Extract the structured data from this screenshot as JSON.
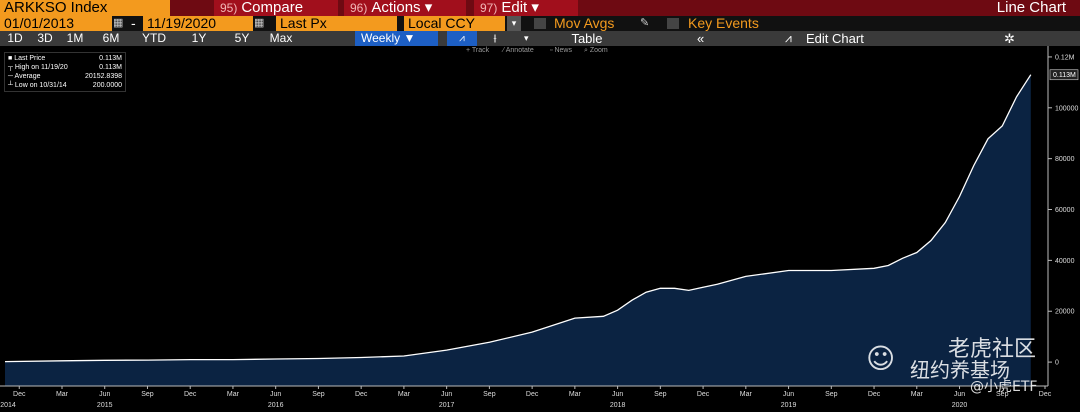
{
  "toolbar": {
    "security": "ARKKSO Index",
    "menu": [
      {
        "key": "95)",
        "label": "Compare"
      },
      {
        "key": "96)",
        "label": "Actions"
      },
      {
        "key": "97)",
        "label": "Edit"
      }
    ],
    "view": "Line Chart"
  },
  "range": {
    "start": "01/01/2013",
    "separator": "-",
    "end": "11/19/2020",
    "field": "Last Px",
    "currency": "Local CCY",
    "options": [
      "Mov Avgs",
      "Key Events"
    ]
  },
  "periods": [
    "1D",
    "3D",
    "1M",
    "6M",
    "YTD",
    "1Y",
    "5Y",
    "Max"
  ],
  "frequency": "Weekly",
  "buttons": [
    "Table",
    "Edit Chart"
  ],
  "tools": [
    "Track",
    "Annotate",
    "News",
    "Zoom"
  ],
  "legend": [
    {
      "label": "Last Price",
      "value": "0.113M"
    },
    {
      "label": "High on 11/19/20",
      "value": "0.113M"
    },
    {
      "label": "Average",
      "value": "20152.8398"
    },
    {
      "label": "Low on 10/31/14",
      "value": "200.0000"
    }
  ],
  "watermark": [
    "老虎社区",
    "纽约养基场",
    "@小虎ETF"
  ],
  "chart_data": {
    "type": "area",
    "x": [
      "2014-11",
      "2015-03",
      "2015-06",
      "2015-09",
      "2015-12",
      "2016-03",
      "2016-06",
      "2016-09",
      "2016-12",
      "2017-03",
      "2017-06",
      "2017-09",
      "2017-12",
      "2018-03",
      "2018-05",
      "2018-06",
      "2018-07",
      "2018-08",
      "2018-09",
      "2018-10",
      "2018-11",
      "2018-12",
      "2019-01",
      "2019-03",
      "2019-06",
      "2019-09",
      "2019-12",
      "2020-01",
      "2020-02",
      "2020-03",
      "2020-04",
      "2020-05",
      "2020-06",
      "2020-07",
      "2020-08",
      "2020-09",
      "2020-10",
      "2020-11"
    ],
    "values": [
      200,
      500,
      700,
      800,
      1000,
      1000,
      1200,
      1400,
      1800,
      2400,
      4700,
      7800,
      11800,
      17300,
      18000,
      20400,
      24300,
      27500,
      29000,
      29000,
      28200,
      29400,
      30600,
      33700,
      36000,
      36000,
      36900,
      38000,
      40800,
      43100,
      47800,
      54900,
      65100,
      77300,
      87800,
      92900,
      104300,
      113000
    ],
    "color": "#0b2342",
    "line_color": "#ffffff",
    "xlim": [
      "2014-11",
      "2020-12"
    ],
    "xticks": [
      {
        "value": "2014-12",
        "label": "Dec"
      },
      {
        "value": "2015-03",
        "label": "Mar"
      },
      {
        "value": "2015-06",
        "label": "Jun"
      },
      {
        "value": "2015-09",
        "label": "Sep"
      },
      {
        "value": "2015-12",
        "label": "Dec"
      },
      {
        "value": "2016-03",
        "label": "Mar"
      },
      {
        "value": "2016-06",
        "label": "Jun"
      },
      {
        "value": "2016-09",
        "label": "Sep"
      },
      {
        "value": "2016-12",
        "label": "Dec"
      },
      {
        "value": "2017-03",
        "label": "Mar"
      },
      {
        "value": "2017-06",
        "label": "Jun"
      },
      {
        "value": "2017-09",
        "label": "Sep"
      },
      {
        "value": "2017-12",
        "label": "Dec"
      },
      {
        "value": "2018-03",
        "label": "Mar"
      },
      {
        "value": "2018-06",
        "label": "Jun"
      },
      {
        "value": "2018-09",
        "label": "Sep"
      },
      {
        "value": "2018-12",
        "label": "Dec"
      },
      {
        "value": "2019-03",
        "label": "Mar"
      },
      {
        "value": "2019-06",
        "label": "Jun"
      },
      {
        "value": "2019-09",
        "label": "Sep"
      },
      {
        "value": "2019-12",
        "label": "Dec"
      },
      {
        "value": "2020-03",
        "label": "Mar"
      },
      {
        "value": "2020-06",
        "label": "Jun"
      },
      {
        "value": "2020-09",
        "label": "Sep"
      },
      {
        "value": "2020-12",
        "label": "Dec"
      }
    ],
    "year_ticks": [
      {
        "value": "2014-11",
        "label": "2014"
      },
      {
        "value": "2015-06",
        "label": "2015"
      },
      {
        "value": "2016-06",
        "label": "2016"
      },
      {
        "value": "2017-06",
        "label": "2017"
      },
      {
        "value": "2018-06",
        "label": "2018"
      },
      {
        "value": "2019-06",
        "label": "2019"
      },
      {
        "value": "2020-06",
        "label": "2020"
      }
    ],
    "ylim": [
      -9400,
      124300
    ],
    "yticks": [
      0,
      20000,
      40000,
      60000,
      80000,
      100000,
      {
        "value": 120000,
        "label": "0.12M"
      }
    ],
    "price_tag": {
      "value": 113000,
      "label": "0.113M"
    },
    "grid": false
  }
}
